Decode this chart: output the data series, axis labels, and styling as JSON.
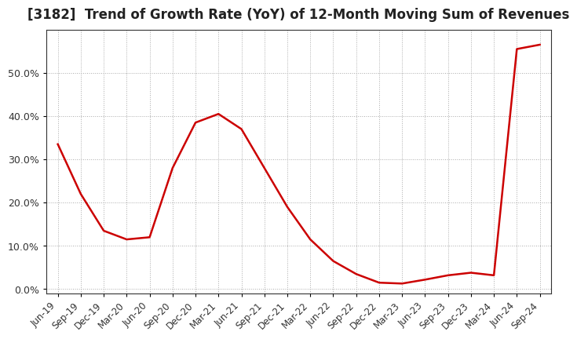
{
  "title": "[3182]  Trend of Growth Rate (YoY) of 12-Month Moving Sum of Revenues",
  "title_fontsize": 12,
  "line_color": "#cc0000",
  "background_color": "#ffffff",
  "grid_color": "#aaaaaa",
  "ylim": [
    -0.01,
    0.6
  ],
  "yticks": [
    0.0,
    0.1,
    0.2,
    0.3,
    0.4,
    0.5
  ],
  "ytick_labels": [
    "0.0%",
    "10.0%",
    "20.0%",
    "30.0%",
    "40.0%",
    "50.0%"
  ],
  "x_labels": [
    "Jun-19",
    "Sep-19",
    "Dec-19",
    "Mar-20",
    "Jun-20",
    "Sep-20",
    "Dec-20",
    "Mar-21",
    "Jun-21",
    "Sep-21",
    "Dec-21",
    "Mar-22",
    "Jun-22",
    "Sep-22",
    "Dec-22",
    "Mar-23",
    "Jun-23",
    "Sep-23",
    "Dec-23",
    "Mar-24",
    "Jun-24",
    "Sep-24"
  ],
  "y_values": [
    0.335,
    0.22,
    0.135,
    0.115,
    0.12,
    0.28,
    0.385,
    0.405,
    0.37,
    0.28,
    0.19,
    0.115,
    0.065,
    0.035,
    0.015,
    0.013,
    0.022,
    0.032,
    0.038,
    0.032,
    0.555,
    0.565
  ]
}
